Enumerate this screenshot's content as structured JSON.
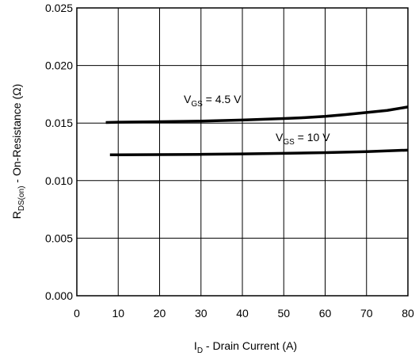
{
  "chart_data": {
    "type": "line",
    "xlabel": {
      "main": "I",
      "sub": "D",
      "rest": " - Drain Current (A)"
    },
    "ylabel": {
      "main": "R",
      "sub": "DS(on)",
      "rest": " - On-Resistance (Ω)"
    },
    "xlim": [
      0,
      80
    ],
    "ylim": [
      0,
      0.025
    ],
    "x_ticks": [
      "0",
      "10",
      "20",
      "30",
      "40",
      "50",
      "60",
      "70",
      "80"
    ],
    "y_ticks": [
      "0.000",
      "0.005",
      "0.010",
      "0.015",
      "0.020",
      "0.025"
    ],
    "grid": true,
    "series": [
      {
        "name": {
          "main": "V",
          "sub": "GS",
          "rest": " = 4.5 V"
        },
        "x": [
          7,
          10,
          20,
          30,
          40,
          50,
          55,
          60,
          65,
          70,
          75,
          80
        ],
        "y": [
          0.01505,
          0.01507,
          0.01512,
          0.01517,
          0.01526,
          0.01539,
          0.01547,
          0.01558,
          0.01574,
          0.01592,
          0.0161,
          0.0164
        ]
      },
      {
        "name": {
          "main": "V",
          "sub": "GS",
          "rest": " = 10 V"
        },
        "x": [
          8,
          10,
          20,
          30,
          40,
          50,
          60,
          70,
          80
        ],
        "y": [
          0.01224,
          0.01224,
          0.01226,
          0.01228,
          0.01232,
          0.01237,
          0.01243,
          0.01252,
          0.01265
        ]
      }
    ]
  }
}
